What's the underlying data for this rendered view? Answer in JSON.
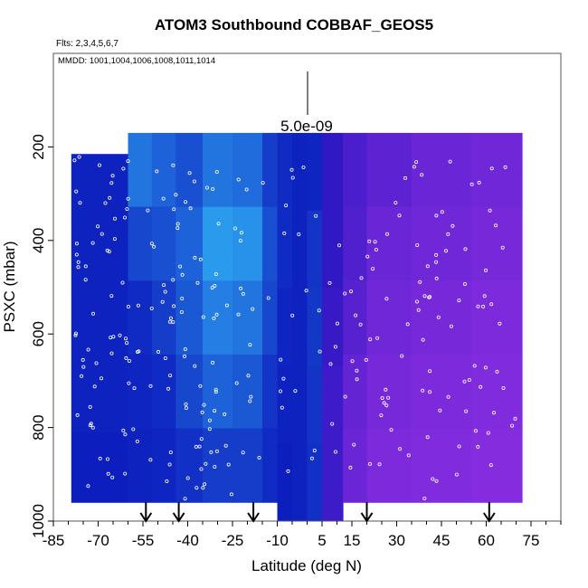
{
  "chart_data": {
    "type": "heatmap",
    "title": "ATOM3 Southbound COBBAF_GEOS5",
    "flights_note": "Flts: 2,3,4,5,6,7",
    "dates_note": "MMDD: 1001,1004,1006,1008,1011,1014",
    "xlabel": "Latitude (deg N)",
    "ylabel": "PSXC (mbar)",
    "xlim": [
      -85,
      85
    ],
    "ylim": [
      1000,
      0
    ],
    "x_ticks": [
      -85,
      -70,
      -55,
      -40,
      -25,
      -10,
      5,
      15,
      30,
      45,
      60,
      75
    ],
    "y_ticks": [
      200,
      400,
      600,
      800,
      1000
    ],
    "scale_label": "5.0e-09",
    "arrow_latitudes": [
      -54,
      -43,
      -18,
      20,
      61
    ],
    "colors": {
      "low": "#0a0fb8",
      "high_tropical": "#35c8ff",
      "north": "#8a2de0",
      "points": "#ffffff"
    },
    "color_columns": [
      {
        "lat": [
          -79,
          -60
        ],
        "p_top": 215,
        "p_bot": 960,
        "c": [
          0.1,
          0.1,
          0.1,
          0.1,
          0.08
        ]
      },
      {
        "lat": [
          -60,
          -52
        ],
        "p_top": 170,
        "p_bot": 960,
        "c": [
          0.55,
          0.3,
          0.15,
          0.12,
          0.1
        ]
      },
      {
        "lat": [
          -52,
          -44
        ],
        "p_top": 170,
        "p_bot": 960,
        "c": [
          0.45,
          0.35,
          0.25,
          0.15,
          0.12
        ]
      },
      {
        "lat": [
          -44,
          -35
        ],
        "p_top": 170,
        "p_bot": 960,
        "c": [
          0.35,
          0.45,
          0.4,
          0.3,
          0.18
        ]
      },
      {
        "lat": [
          -35,
          -25
        ],
        "p_top": 170,
        "p_bot": 960,
        "c": [
          0.55,
          0.75,
          0.6,
          0.45,
          0.25
        ]
      },
      {
        "lat": [
          -25,
          -15
        ],
        "p_top": 170,
        "p_bot": 960,
        "c": [
          0.5,
          0.7,
          0.55,
          0.4,
          0.25
        ]
      },
      {
        "lat": [
          -15,
          -10
        ],
        "p_top": 170,
        "p_bot": 960,
        "c": [
          0.25,
          0.35,
          0.3,
          0.2,
          0.15
        ]
      },
      {
        "lat": [
          -10,
          -5
        ],
        "p_top": 170,
        "p_bot": 1000,
        "c": [
          0.15,
          0.15,
          0.12,
          0.1,
          0.08
        ]
      },
      {
        "lat": [
          -5,
          0
        ],
        "p_top": 170,
        "p_bot": 1000,
        "c": [
          0.1,
          0.1,
          0.1,
          0.1,
          0.1
        ]
      },
      {
        "lat": [
          0,
          5
        ],
        "p_top": 170,
        "p_bot": 1000,
        "c": [
          0.12,
          0.2,
          0.22,
          0.2,
          0.18
        ]
      },
      {
        "lat": [
          5,
          12
        ],
        "p_top": 170,
        "p_bot": 1000,
        "c": [
          0.3,
          0.3,
          0.35,
          0.4,
          0.4
        ]
      },
      {
        "lat": [
          12,
          20
        ],
        "p_top": 170,
        "p_bot": 960,
        "c": [
          0.5,
          0.55,
          0.6,
          0.7,
          0.75
        ]
      },
      {
        "lat": [
          20,
          35
        ],
        "p_top": 170,
        "p_bot": 960,
        "c": [
          0.65,
          0.75,
          0.8,
          0.85,
          0.9
        ]
      },
      {
        "lat": [
          35,
          55
        ],
        "p_top": 170,
        "p_bot": 960,
        "c": [
          0.75,
          0.8,
          0.85,
          0.9,
          0.92
        ]
      },
      {
        "lat": [
          55,
          72
        ],
        "p_top": 170,
        "p_bot": 960,
        "c": [
          0.8,
          0.85,
          0.9,
          0.92,
          0.95
        ]
      }
    ]
  }
}
